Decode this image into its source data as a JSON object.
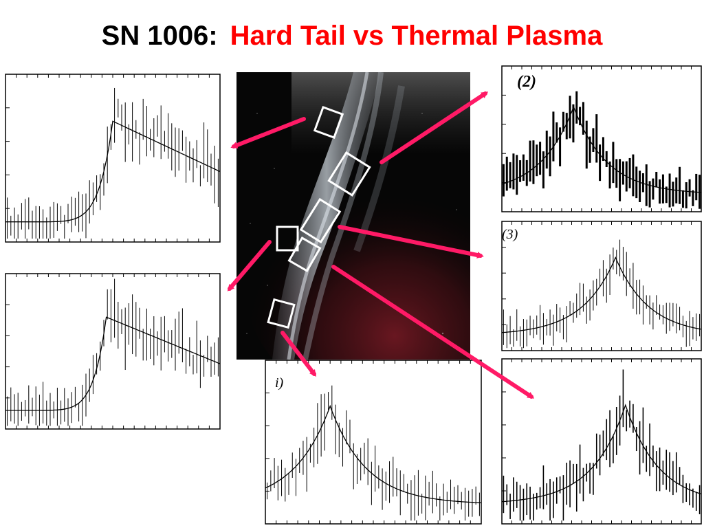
{
  "title": {
    "prefix": "SN 1006:",
    "highlight": "Hard Tail vs Thermal Plasma"
  },
  "colors": {
    "title": "#000000",
    "highlight": "#ff0000",
    "arrow": "#ff1a66",
    "box": "#ffffff",
    "trace": "#000000"
  },
  "panels": [
    {
      "id": "top-left",
      "label": "",
      "shape": "hard-tail"
    },
    {
      "id": "mid-left",
      "label": "",
      "shape": "hard-tail"
    },
    {
      "id": "right-2",
      "label": "(2)",
      "shape": "thermal"
    },
    {
      "id": "right-3",
      "label": "(3)",
      "shape": "thermal"
    },
    {
      "id": "bottom-center",
      "label": "i)",
      "shape": "thermal"
    },
    {
      "id": "bottom-right",
      "label": "",
      "shape": "thermal"
    }
  ],
  "image": {
    "description_name": "sn1006-xray-image"
  }
}
